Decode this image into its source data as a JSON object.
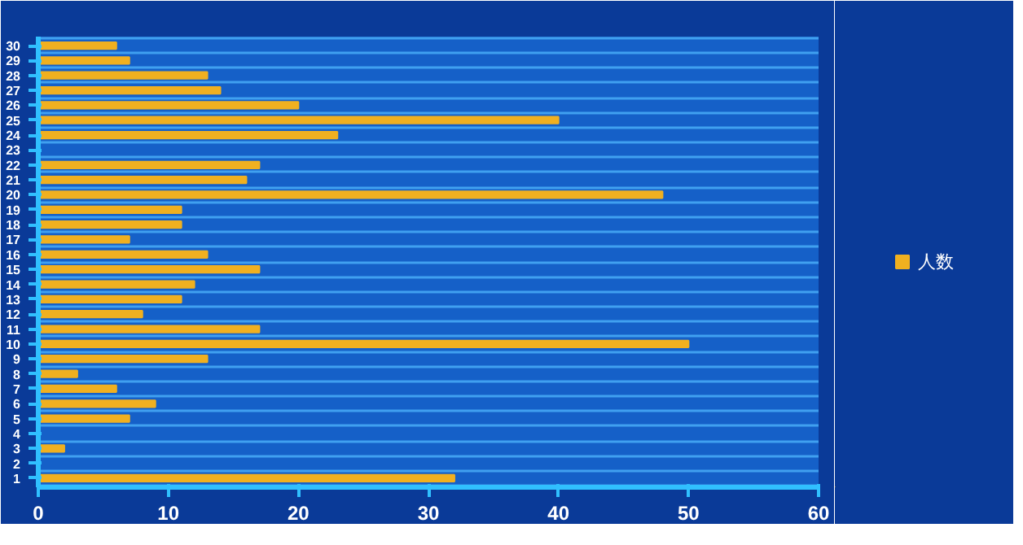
{
  "chart_data": {
    "type": "bar",
    "orientation": "horizontal",
    "categories": [
      "30",
      "29",
      "28",
      "27",
      "26",
      "25",
      "24",
      "23",
      "22",
      "21",
      "20",
      "19",
      "18",
      "17",
      "16",
      "15",
      "14",
      "13",
      "12",
      "11",
      "10",
      "9",
      "8",
      "7",
      "6",
      "5",
      "4",
      "3",
      "2",
      "1"
    ],
    "series": [
      {
        "name": "人数",
        "color": "#f0b020",
        "values": [
          6,
          7,
          13,
          14,
          20,
          40,
          23,
          0,
          17,
          16,
          48,
          11,
          11,
          7,
          13,
          17,
          12,
          11,
          8,
          17,
          50,
          13,
          3,
          6,
          9,
          7,
          0,
          2,
          0,
          32
        ]
      }
    ],
    "xlim": [
      0,
      60
    ],
    "xticks": [
      0,
      10,
      20,
      30,
      40,
      50,
      60
    ],
    "grid": "y",
    "legend": "right"
  }
}
